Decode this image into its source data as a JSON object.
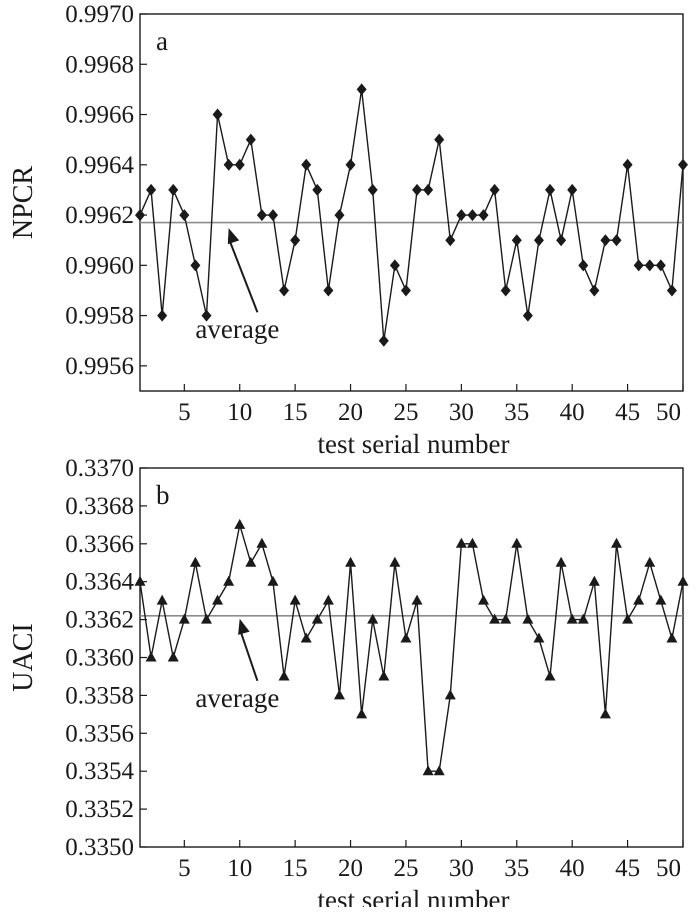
{
  "chart_data": [
    {
      "type": "line",
      "panel_label": "a",
      "ylabel": "NPCR",
      "xlabel": "test serial number",
      "xlim": [
        1,
        50
      ],
      "ylim": [
        0.9955,
        0.997
      ],
      "x_ticks": [
        5,
        10,
        15,
        20,
        25,
        30,
        35,
        40,
        45,
        50
      ],
      "y_ticks": [
        "0.9956",
        "0.9958",
        "0.9960",
        "0.9962",
        "0.9964",
        "0.9966",
        "0.9968",
        "0.9970"
      ],
      "marker": "diamond",
      "average": 0.99617,
      "average_label": "average",
      "annotation_at": [
        9,
        0.99616
      ],
      "annotation_text_at": [
        6,
        0.99571
      ],
      "series": [
        {
          "values": [
            0.9962,
            0.9963,
            0.9958,
            0.9963,
            0.9962,
            0.996,
            0.9958,
            0.9966,
            0.9964,
            0.9964,
            0.9965,
            0.9962,
            0.9962,
            0.9959,
            0.9961,
            0.9964,
            0.9963,
            0.9959,
            0.9962,
            0.9964,
            0.9967,
            0.9963,
            0.9957,
            0.996,
            0.9959,
            0.9963,
            0.9963,
            0.9965,
            0.9961,
            0.9962,
            0.9962,
            0.9962,
            0.9963,
            0.9959,
            0.9961,
            0.9958,
            0.9961,
            0.9963,
            0.9961,
            0.9963,
            0.996,
            0.9959,
            0.9961,
            0.9961,
            0.9964,
            0.996,
            0.996,
            0.996,
            0.9959,
            0.9964
          ]
        }
      ]
    },
    {
      "type": "line",
      "panel_label": "b",
      "ylabel": "UACI",
      "xlabel": "test serial number",
      "xlim": [
        1,
        50
      ],
      "ylim": [
        0.335,
        0.337
      ],
      "x_ticks": [
        5,
        10,
        15,
        20,
        25,
        30,
        35,
        40,
        45,
        50
      ],
      "y_ticks": [
        "0.3350",
        "0.3352",
        "0.3354",
        "0.3356",
        "0.3358",
        "0.3360",
        "0.3362",
        "0.3364",
        "0.3366",
        "0.3368",
        "0.3370"
      ],
      "marker": "triangle",
      "average": 0.33622,
      "average_label": "average",
      "annotation_at": [
        10,
        0.33622
      ],
      "annotation_text_at": [
        6,
        0.33574
      ],
      "series": [
        {
          "values": [
            0.3364,
            0.336,
            0.3363,
            0.336,
            0.3362,
            0.3365,
            0.3362,
            0.3363,
            0.3364,
            0.3367,
            0.3365,
            0.3366,
            0.3364,
            0.3359,
            0.3363,
            0.3361,
            0.3362,
            0.3363,
            0.3358,
            0.3365,
            0.3357,
            0.3362,
            0.3359,
            0.3365,
            0.3361,
            0.3363,
            0.3354,
            0.3354,
            0.3358,
            0.3366,
            0.3366,
            0.3363,
            0.3362,
            0.3362,
            0.3366,
            0.3362,
            0.3361,
            0.3359,
            0.3365,
            0.3362,
            0.3362,
            0.3364,
            0.3357,
            0.3366,
            0.3362,
            0.3363,
            0.3365,
            0.3363,
            0.3361,
            0.3364
          ]
        }
      ]
    }
  ],
  "colors": {
    "line": "#1a1a1a",
    "average": "#8c8c8c",
    "axis": "#1a1a1a"
  }
}
